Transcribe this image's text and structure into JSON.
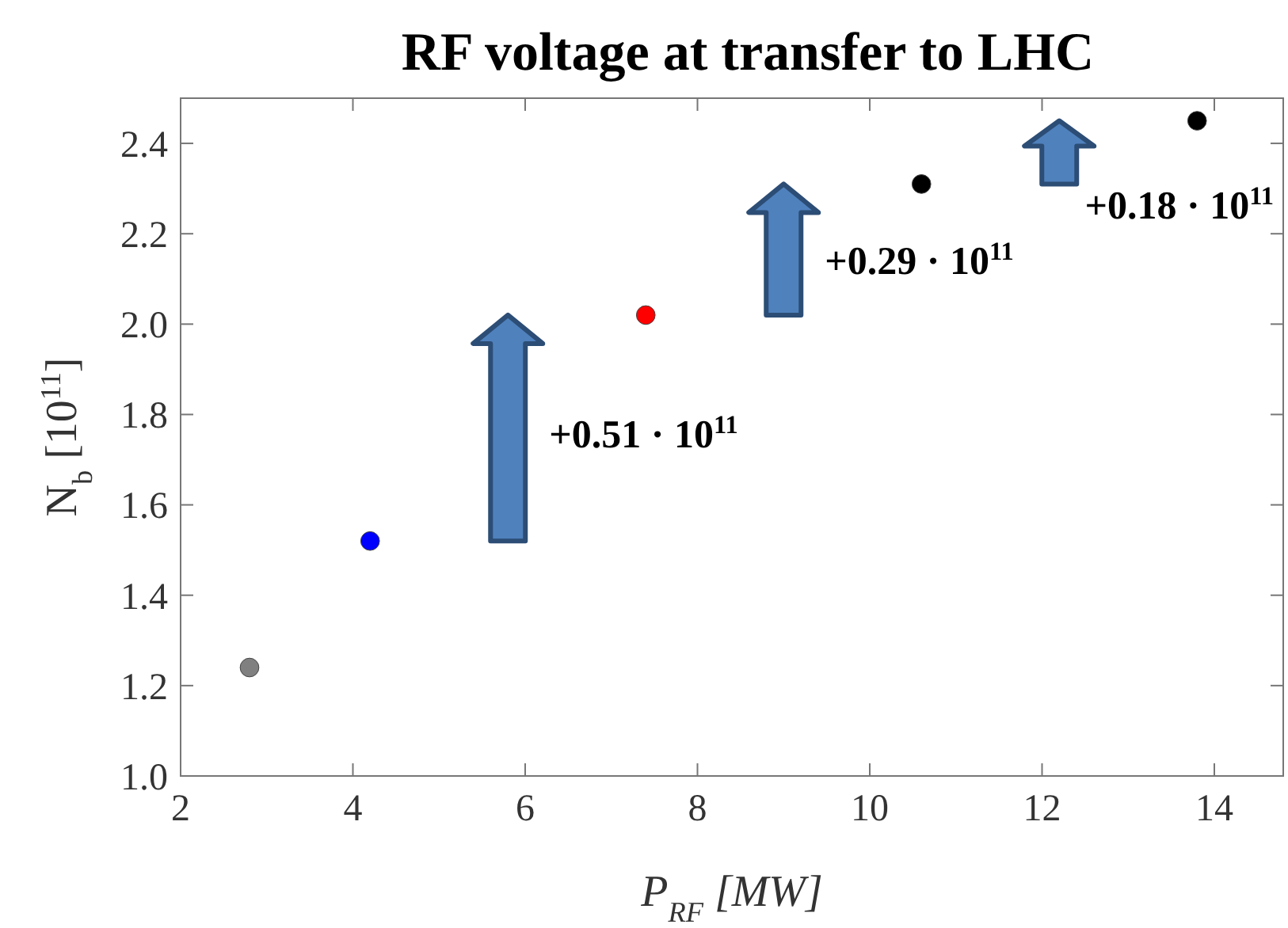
{
  "chart_data": {
    "type": "scatter",
    "title": "RF voltage at transfer to LHC",
    "xlabel": "P$_{RF}$ [MW]",
    "ylabel": "N$_{b}$ [10$^{11}$]",
    "x": [
      2.8,
      4.2,
      7.4,
      10.6,
      13.8
    ],
    "values": [
      1.24,
      1.52,
      2.02,
      2.31,
      2.45
    ],
    "colors": [
      "#808080",
      "#0000ff",
      "#ff0000",
      "#000000",
      "#000000"
    ],
    "marker": "circle",
    "xlim": [
      2,
      14.8
    ],
    "xticks": [
      2,
      4,
      6,
      8,
      10,
      12,
      14
    ],
    "ylim": [
      1,
      2.5
    ],
    "yticks": [
      {
        "value": 1,
        "label": "1.0"
      },
      {
        "value": 1.2,
        "label": "1.2"
      },
      {
        "value": 1.4,
        "label": "1.4"
      },
      {
        "value": 1.6,
        "label": "1.6"
      },
      {
        "value": 1.8,
        "label": "1.8"
      },
      {
        "value": 2,
        "label": "2.0"
      },
      {
        "value": 2.2,
        "label": "2.2"
      },
      {
        "value": 2.4,
        "label": "2.4"
      }
    ],
    "grid": false,
    "annotations": [
      "+0.51 · 10$^{11}$",
      "+0.29 · 10$^{11}$",
      "+0.18 · 10$^{11}$"
    ]
  }
}
